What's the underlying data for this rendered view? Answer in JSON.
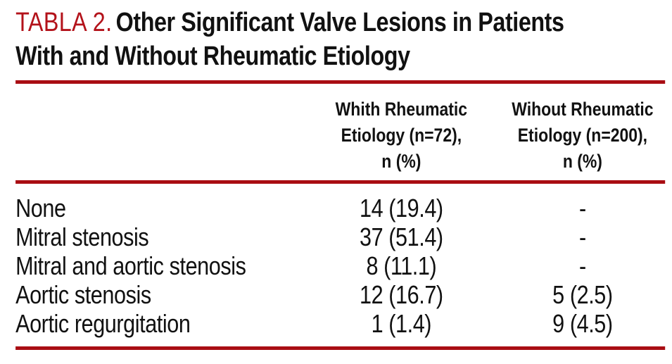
{
  "title": {
    "label": "TABLA 2.",
    "text_line1": "Other Significant Valve Lesions in Patients",
    "text_line2": "With and Without Rheumatic Etiology"
  },
  "colors": {
    "rule_red": "#a90d13",
    "title_label_red": "#b3121a",
    "text": "#111111",
    "background": "#ffffff"
  },
  "chart_data": {
    "type": "table",
    "title": "TABLA 2. Other Significant Valve Lesions in Patients With and Without Rheumatic Etiology",
    "columns": [
      {
        "lines": [
          "",
          "",
          ""
        ]
      },
      {
        "lines": [
          "Whith Rheumatic",
          "Etiology (n=72),",
          "n (%)"
        ]
      },
      {
        "lines": [
          "Wihout Rheumatic",
          "Etiology (n=200),",
          "n (%)"
        ]
      }
    ],
    "rows": [
      {
        "label": "None",
        "with_rheumatic": "14 (19.4)",
        "without_rheumatic": "-"
      },
      {
        "label": "Mitral stenosis",
        "with_rheumatic": "37 (51.4)",
        "without_rheumatic": "-"
      },
      {
        "label": "Mitral and aortic stenosis",
        "with_rheumatic": "8 (11.1)",
        "without_rheumatic": "-"
      },
      {
        "label": "Aortic stenosis",
        "with_rheumatic": "12 (16.7)",
        "without_rheumatic": "5 (2.5)"
      },
      {
        "label": "Aortic regurgitation",
        "with_rheumatic": "1 (1.4)",
        "without_rheumatic": "9 (4.5)"
      }
    ]
  }
}
